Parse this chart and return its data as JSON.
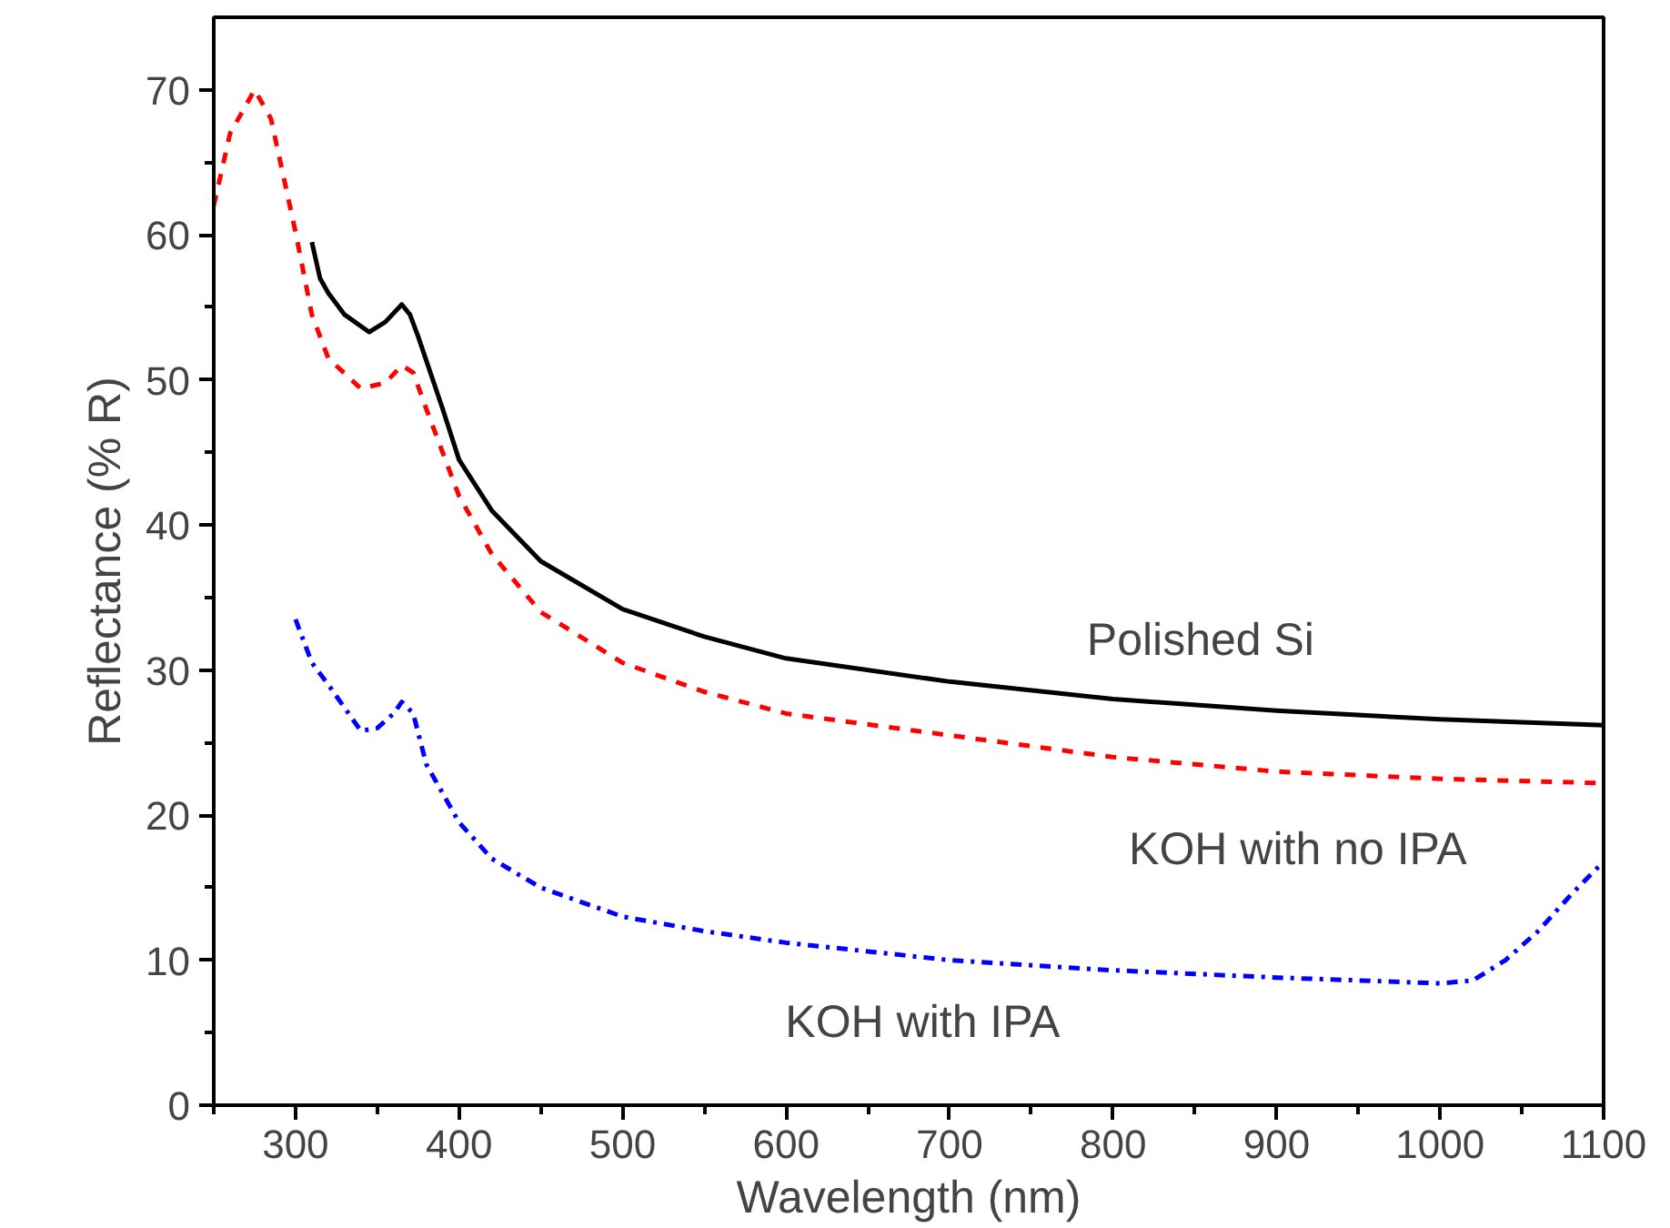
{
  "chart_data": {
    "type": "line",
    "xlabel": "Wavelength (nm)",
    "ylabel": "Reflectance (% R)",
    "xlim": [
      250,
      1100
    ],
    "ylim": [
      0,
      75
    ],
    "xticks": [
      300,
      400,
      500,
      600,
      700,
      800,
      900,
      1000,
      1100
    ],
    "yticks": [
      0,
      10,
      20,
      30,
      40,
      50,
      60,
      70
    ],
    "grid": false,
    "legend": false,
    "marker": "none",
    "series": [
      {
        "name": "Polished Si",
        "color": "#000000",
        "line_style": "solid",
        "x": [
          310,
          315,
          320,
          330,
          345,
          355,
          365,
          370,
          375,
          390,
          400,
          420,
          450,
          500,
          550,
          600,
          700,
          800,
          900,
          1000,
          1100
        ],
        "values": [
          59.5,
          57,
          56,
          54.5,
          53.3,
          54,
          55.2,
          54.5,
          53,
          48,
          44.5,
          41,
          37.5,
          34.2,
          32.3,
          30.8,
          29.2,
          28,
          27.2,
          26.6,
          26.2
        ]
      },
      {
        "name": "KOH with no IPA",
        "color": "#ff0000",
        "line_style": "dashed",
        "x": [
          250,
          260,
          275,
          285,
          300,
          310,
          320,
          340,
          355,
          365,
          372,
          380,
          400,
          420,
          450,
          500,
          550,
          600,
          700,
          800,
          900,
          1000,
          1100
        ],
        "values": [
          62,
          67,
          70,
          68,
          60.2,
          54.5,
          51.5,
          49.4,
          49.8,
          51,
          50.5,
          48,
          42,
          38,
          34,
          30.5,
          28.5,
          27,
          25.5,
          24,
          23,
          22.5,
          22.2
        ]
      },
      {
        "name": "KOH with IPA",
        "color": "#0000ff",
        "line_style": "dashdot",
        "x": [
          300,
          310,
          320,
          340,
          350,
          360,
          365,
          372,
          380,
          400,
          420,
          450,
          500,
          550,
          600,
          700,
          800,
          900,
          1000,
          1020,
          1040,
          1060,
          1080,
          1100
        ],
        "values": [
          33.5,
          30.5,
          29,
          25.8,
          26,
          27,
          27.8,
          27,
          23.5,
          19.5,
          17,
          15,
          13,
          12,
          11.2,
          10,
          9.3,
          8.8,
          8.4,
          8.6,
          10,
          12,
          14.5,
          16.8
        ]
      }
    ]
  }
}
